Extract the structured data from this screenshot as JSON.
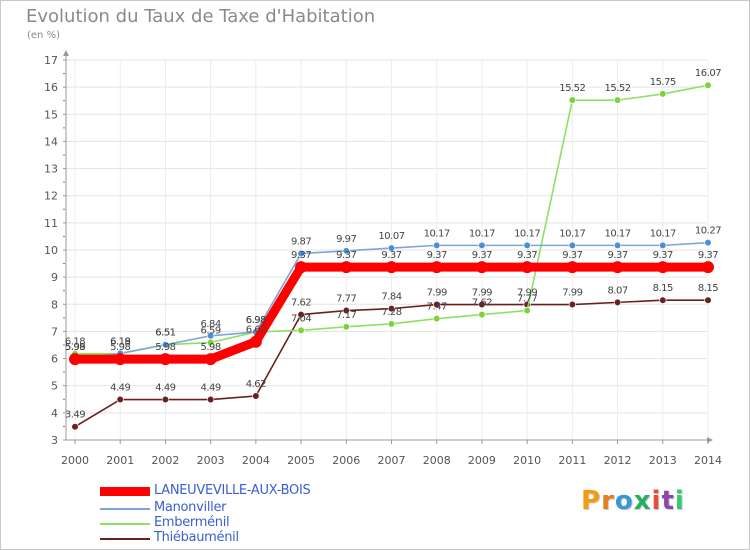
{
  "title": "Evolution du Taux de Taxe d'Habitation",
  "unit": "(en %)",
  "brand": {
    "text": "Proxiti",
    "letters": [
      "P",
      "r",
      "o",
      "x",
      "i",
      "t",
      "i"
    ],
    "colors": [
      "#f39c12",
      "#e67e22",
      "#3498db",
      "#27ae60",
      "#e74c3c",
      "#8e44ad",
      "#2ecc71"
    ]
  },
  "chart_data": {
    "type": "line",
    "title": "Evolution du Taux de Taxe d'Habitation",
    "ylabel": "(en %)",
    "xlabel": "",
    "x": [
      2000,
      2001,
      2002,
      2003,
      2004,
      2005,
      2006,
      2007,
      2008,
      2009,
      2010,
      2011,
      2012,
      2013,
      2014
    ],
    "ylim": [
      3,
      17
    ],
    "yticks": [
      3,
      4,
      5,
      6,
      7,
      8,
      9,
      10,
      11,
      12,
      13,
      14,
      15,
      16,
      17
    ],
    "grid": true,
    "legend": "bottom-left",
    "series": [
      {
        "name": "Thiébauménil",
        "color": "#6b1f1f",
        "dot": "#6b1f1f",
        "values": [
          3.49,
          4.49,
          4.49,
          4.49,
          4.62,
          7.62,
          7.77,
          7.84,
          7.99,
          7.99,
          7.99,
          7.99,
          8.07,
          8.15,
          8.15
        ],
        "labels": [
          "3.49",
          "4.49",
          "4.49",
          "4.49",
          "4.62",
          "7.62",
          "7.77",
          "7.84",
          "7.99",
          "7.99",
          "7.99",
          "7.99",
          "8.07",
          "8.15",
          "8.15"
        ]
      },
      {
        "name": "Emberménil",
        "color": "#8ee065",
        "dot": "#7fd13b",
        "values": [
          6.18,
          6.18,
          6.51,
          6.59,
          6.98,
          7.04,
          7.17,
          7.28,
          7.47,
          7.62,
          7.77,
          15.52,
          15.52,
          15.75,
          16.07
        ],
        "labels": [
          "6.18",
          "6.18",
          "6.51",
          "6.59",
          "6.98",
          "7.04",
          "7.17",
          "7.28",
          "7.47",
          "7.62",
          "7.77",
          "15.52",
          "15.52",
          "15.75",
          "16.07"
        ]
      },
      {
        "name": "Manonviller",
        "color": "#7aa7d6",
        "dot": "#4a90d9",
        "values": [
          5.99,
          6.19,
          6.51,
          6.84,
          6.98,
          9.87,
          9.97,
          10.07,
          10.17,
          10.17,
          10.17,
          10.17,
          10.17,
          10.17,
          10.27
        ],
        "labels": [
          "5.99",
          "6.19",
          "6.51",
          "6.84",
          "6.98",
          "9.87",
          "9.97",
          "10.07",
          "10.17",
          "10.17",
          "10.17",
          "10.17",
          "10.17",
          "10.17",
          "10.27"
        ]
      },
      {
        "name": "LANEUVEVILLE-AUX-BOIS",
        "color": "#ff0000",
        "dot": "#ff0000",
        "values": [
          5.98,
          5.98,
          5.98,
          5.98,
          6.62,
          9.37,
          9.37,
          9.37,
          9.37,
          9.37,
          9.37,
          9.37,
          9.37,
          9.37,
          9.37
        ],
        "labels": [
          "5.98",
          "5.98",
          "5.98",
          "5.98",
          "6.62",
          "9.37",
          "9.37",
          "9.37",
          "9.37",
          "9.37",
          "9.37",
          "9.37",
          "9.37",
          "9.37",
          "9.37"
        ]
      }
    ]
  },
  "legend": {
    "items": [
      {
        "name": "LANEUVEVILLE-AUX-BOIS",
        "color": "#ff0000"
      },
      {
        "name": "Manonviller",
        "color": "#7aa7d6"
      },
      {
        "name": "Emberménil",
        "color": "#8ee065"
      },
      {
        "name": "Thiébauménil",
        "color": "#6b1f1f"
      }
    ]
  }
}
